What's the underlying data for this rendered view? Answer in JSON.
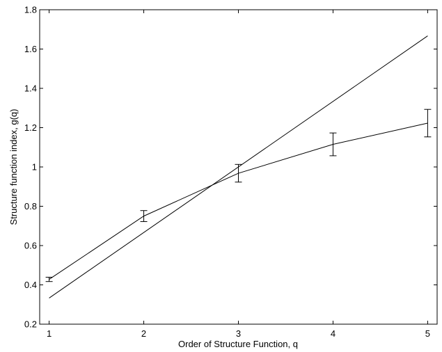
{
  "chart_data": {
    "type": "line",
    "title": "",
    "xlabel": "Order of Structure Function, q",
    "ylabel": "Structure function index, g(q)",
    "xlim": [
      0.9,
      5.1
    ],
    "ylim": [
      0.2,
      1.8
    ],
    "xticks": [
      1,
      2,
      3,
      4,
      5
    ],
    "xtick_labels": [
      "1",
      "2",
      "3",
      "4",
      "5"
    ],
    "yticks": [
      0.2,
      0.4,
      0.6,
      0.8,
      1.0,
      1.2,
      1.4,
      1.6,
      1.8
    ],
    "ytick_labels": [
      "0.2",
      "0.4",
      "0.6",
      "0.8",
      "1",
      "1.2",
      "1.4",
      "1.6",
      "1.8"
    ],
    "grid": false,
    "legend": "none",
    "series": [
      {
        "style": "line with error bars",
        "x": [
          1,
          2,
          3,
          4,
          5
        ],
        "y": [
          0.428,
          0.75,
          0.968,
          1.115,
          1.223
        ],
        "err": [
          0.011,
          0.028,
          0.045,
          0.058,
          0.07
        ]
      },
      {
        "style": "straight line",
        "x": [
          1,
          5
        ],
        "y": [
          0.333,
          1.667
        ]
      }
    ],
    "colors": {
      "line": "#000000",
      "axes": "#000000",
      "background": "#ffffff"
    }
  }
}
